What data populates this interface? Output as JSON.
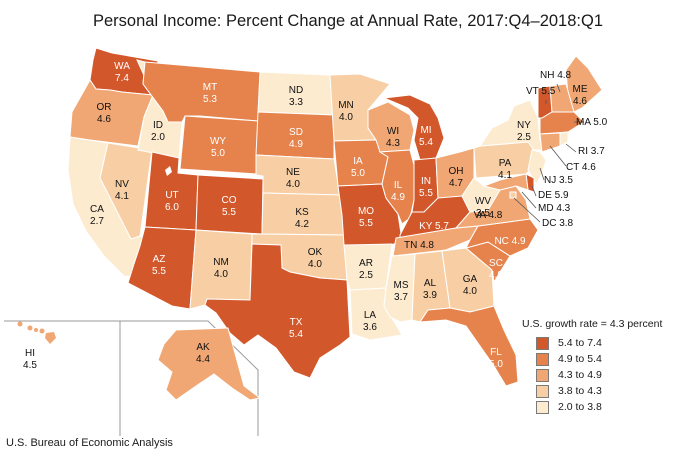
{
  "title": "Personal Income: Percent Change at Annual Rate, 2017:Q4–2018:Q1",
  "source": "U.S. Bureau of Economic Analysis",
  "legend": {
    "title": "U.S. growth rate = 4.3 percent",
    "items": [
      {
        "label": "5.4 to 7.4",
        "color": "#d2572a"
      },
      {
        "label": "4.9 to 5.4",
        "color": "#e6834c"
      },
      {
        "label": "4.3 to 4.9",
        "color": "#f0a774"
      },
      {
        "label": "3.8 to 4.3",
        "color": "#f8cfa4"
      },
      {
        "label": "2.0 to 3.8",
        "color": "#fdebd0"
      }
    ]
  },
  "states": {
    "WA": {
      "abbr": "WA",
      "value": "7.4"
    },
    "OR": {
      "abbr": "OR",
      "value": "4.6"
    },
    "CA": {
      "abbr": "CA",
      "value": "2.7"
    },
    "NV": {
      "abbr": "NV",
      "value": "4.1"
    },
    "ID": {
      "abbr": "ID",
      "value": "2.0"
    },
    "MT": {
      "abbr": "MT",
      "value": "5.3"
    },
    "WY": {
      "abbr": "WY",
      "value": "5.0"
    },
    "UT": {
      "abbr": "UT",
      "value": "6.0"
    },
    "CO": {
      "abbr": "CO",
      "value": "5.5"
    },
    "AZ": {
      "abbr": "AZ",
      "value": "5.5"
    },
    "NM": {
      "abbr": "NM",
      "value": "4.0"
    },
    "ND": {
      "abbr": "ND",
      "value": "3.3"
    },
    "SD": {
      "abbr": "SD",
      "value": "4.9"
    },
    "NE": {
      "abbr": "NE",
      "value": "4.0"
    },
    "KS": {
      "abbr": "KS",
      "value": "4.2"
    },
    "OK": {
      "abbr": "OK",
      "value": "4.0"
    },
    "TX": {
      "abbr": "TX",
      "value": "5.4"
    },
    "MN": {
      "abbr": "MN",
      "value": "4.0"
    },
    "IA": {
      "abbr": "IA",
      "value": "5.0"
    },
    "MO": {
      "abbr": "MO",
      "value": "5.5"
    },
    "AR": {
      "abbr": "AR",
      "value": "2.5"
    },
    "LA": {
      "abbr": "LA",
      "value": "3.6"
    },
    "WI": {
      "abbr": "WI",
      "value": "4.3"
    },
    "IL": {
      "abbr": "IL",
      "value": "4.9"
    },
    "MI": {
      "abbr": "MI",
      "value": "5.4"
    },
    "IN": {
      "abbr": "IN",
      "value": "5.5"
    },
    "OH": {
      "abbr": "OH",
      "value": "4.7"
    },
    "KY": {
      "abbr": "KY",
      "value": "5.7"
    },
    "TN": {
      "abbr": "TN",
      "value": "4.8"
    },
    "MS": {
      "abbr": "MS",
      "value": "3.7"
    },
    "AL": {
      "abbr": "AL",
      "value": "3.9"
    },
    "GA": {
      "abbr": "GA",
      "value": "4.0"
    },
    "FL": {
      "abbr": "FL",
      "value": "5.0"
    },
    "SC": {
      "abbr": "SC",
      "value": "4.9"
    },
    "NC": {
      "abbr": "NC",
      "value": "4.9"
    },
    "VA": {
      "abbr": "VA",
      "value": "4.8"
    },
    "WV": {
      "abbr": "WV",
      "value": "3.5"
    },
    "PA": {
      "abbr": "PA",
      "value": "4.1"
    },
    "NY": {
      "abbr": "NY",
      "value": "2.5"
    },
    "ME": {
      "abbr": "ME",
      "value": "4.6"
    },
    "VT": {
      "abbr": "VT",
      "value": "5.5"
    },
    "NH": {
      "abbr": "NH",
      "value": "4.8"
    },
    "MA": {
      "abbr": "MA",
      "value": "5.0"
    },
    "RI": {
      "abbr": "RI",
      "value": "3.7"
    },
    "CT": {
      "abbr": "CT",
      "value": "4.6"
    },
    "NJ": {
      "abbr": "NJ",
      "value": "3.5"
    },
    "DE": {
      "abbr": "DE",
      "value": "5.9"
    },
    "MD": {
      "abbr": "MD",
      "value": "4.3"
    },
    "DC": {
      "abbr": "DC",
      "value": "3.8"
    },
    "AK": {
      "abbr": "AK",
      "value": "4.4"
    },
    "HI": {
      "abbr": "HI",
      "value": "4.5"
    }
  }
}
